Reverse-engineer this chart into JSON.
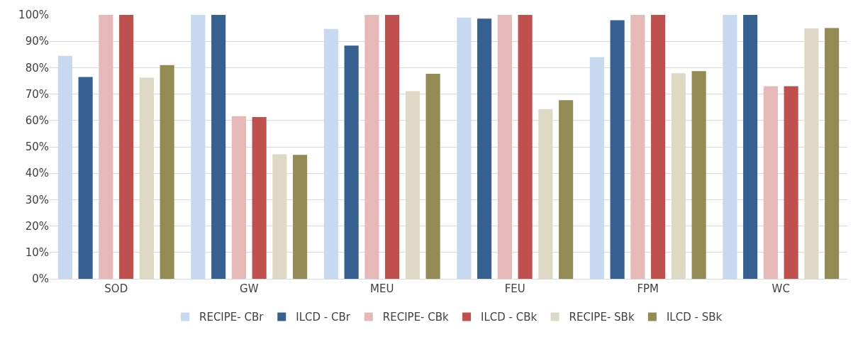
{
  "chart_data": {
    "type": "bar",
    "categories": [
      "SOD",
      "GW",
      "MEU",
      "FEU",
      "FPM",
      "WC"
    ],
    "series": [
      {
        "name": "RECIPE- CBr",
        "color": "#c6d9f1",
        "values": [
          84.5,
          100,
          94.7,
          99,
          84,
          100
        ]
      },
      {
        "name": "ILCD - CBr",
        "color": "#376092",
        "values": [
          76.5,
          100,
          88.4,
          98.6,
          98,
          100
        ]
      },
      {
        "name": "RECIPE- CBk",
        "color": "#e6b9b8",
        "values": [
          100,
          61.6,
          100,
          100,
          100,
          73
        ]
      },
      {
        "name": "ILCD - CBk",
        "color": "#c0504d",
        "values": [
          100,
          61.3,
          100,
          100,
          100,
          73
        ]
      },
      {
        "name": "RECIPE- SBk",
        "color": "#ddd9c4",
        "values": [
          76.2,
          47.2,
          71.1,
          64.3,
          77.9,
          94.9
        ]
      },
      {
        "name": "ILCD - SBk",
        "color": "#948a54",
        "values": [
          81,
          47,
          77.7,
          67.7,
          78.7,
          95
        ]
      }
    ],
    "ylim": [
      0,
      100
    ],
    "yticks": [
      {
        "value": 0,
        "label": "0%"
      },
      {
        "value": 10,
        "label": "10%"
      },
      {
        "value": 20,
        "label": "20%"
      },
      {
        "value": 30,
        "label": "30%"
      },
      {
        "value": 40,
        "label": "40%"
      },
      {
        "value": 50,
        "label": "50%"
      },
      {
        "value": 60,
        "label": "60%"
      },
      {
        "value": 70,
        "label": "70%"
      },
      {
        "value": 80,
        "label": "80%"
      },
      {
        "value": 90,
        "label": "90%"
      },
      {
        "value": 100,
        "label": "100%"
      }
    ],
    "grid": "y",
    "legend": "bottom"
  }
}
